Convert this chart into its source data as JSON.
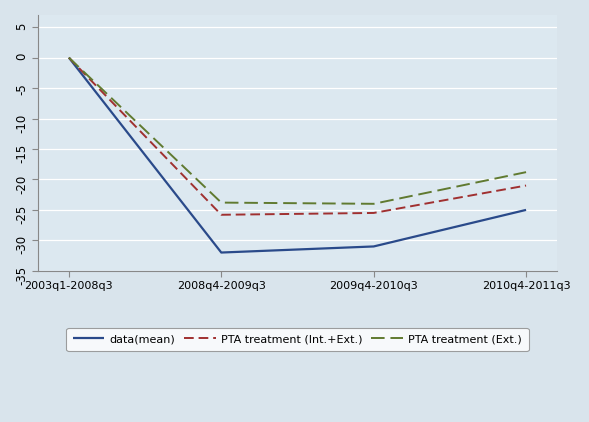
{
  "x_labels": [
    "2003q1-2008q3",
    "2008q4-2009q3",
    "2009q4-2010q3",
    "2010q4-2011q3"
  ],
  "x_positions": [
    0,
    1,
    2,
    3
  ],
  "series": {
    "data_mean": {
      "label": "data(mean)",
      "values": [
        0,
        -32.0,
        -31.0,
        -25.0
      ],
      "color": "#2a4a8a",
      "linestyle": "-",
      "linewidth": 1.6
    },
    "pta_int_ext": {
      "label": "PTA treatment (Int.+Ext.)",
      "values": [
        0,
        -25.8,
        -25.5,
        -21.0
      ],
      "color": "#a03030",
      "linestyle": "--",
      "linewidth": 1.4,
      "dashes": [
        5,
        2.5
      ]
    },
    "pta_ext": {
      "label": "PTA treatment (Ext.)",
      "values": [
        0,
        -23.8,
        -24.0,
        -18.8
      ],
      "color": "#607a30",
      "linestyle": "--",
      "linewidth": 1.4,
      "dashes": [
        7,
        3
      ]
    }
  },
  "ylim": [
    -35,
    7
  ],
  "yticks": [
    5,
    0,
    -5,
    -10,
    -15,
    -20,
    -25,
    -30,
    -35
  ],
  "fig_bg_color": "#d9e4ec",
  "plot_bg_color": "#dce8f0",
  "grid_color": "#ffffff",
  "spine_color": "#888888"
}
